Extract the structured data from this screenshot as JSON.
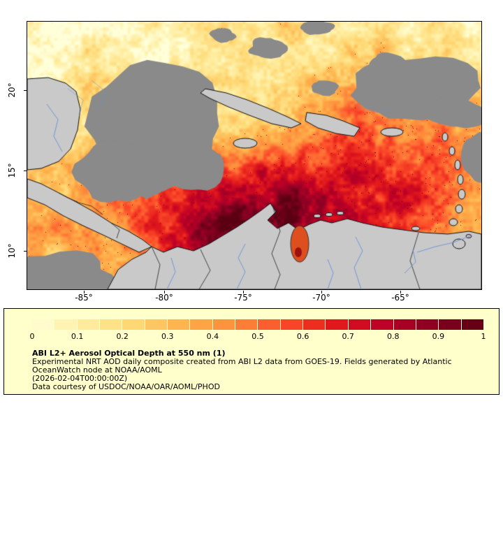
{
  "figure": {
    "map": {
      "lat_tick_labels": [
        "20°",
        "15°",
        "10°"
      ],
      "lon_tick_labels": [
        "-85°",
        "-80°",
        "-75°",
        "-70°",
        "-65°"
      ],
      "colors": {
        "missing_data": "#8a8a8a",
        "land": "#c9c9c9",
        "coastline": "#111111",
        "river": "#6a8fd8",
        "border": "#222222",
        "lake_hotspot": "#dd4f1f"
      }
    },
    "legend": {
      "background": "#ffffcc",
      "colorbar": {
        "segments": 20,
        "anchor_colors": [
          "#ffffd9",
          "#ffeda0",
          "#fed976",
          "#feb24c",
          "#fd8d3c",
          "#fc4e2a",
          "#e31a1c",
          "#bd0026",
          "#8b0023",
          "#5a0013"
        ],
        "tick_labels": [
          "0",
          "0.1",
          "0.2",
          "0.3",
          "0.4",
          "0.5",
          "0.6",
          "0.7",
          "0.8",
          "0.9",
          "1"
        ]
      },
      "title": "ABI L2+ Aerosol Optical Depth at 550 nm (1)",
      "description_lines": [
        "Experimental NRT AOD daily composite created from ABI L2 data from GOES-19. Fields generated by Atlantic",
        "OceanWatch node at NOAA/AOML",
        "(2026-02-04T00:00:00Z)",
        "Data courtesy of USDOC/NOAA/OAR/AOML/PHOD"
      ]
    }
  }
}
